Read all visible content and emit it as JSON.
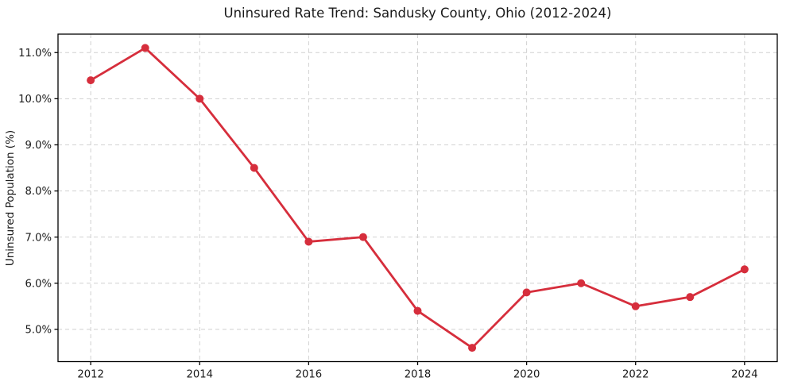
{
  "chart_data": {
    "type": "line",
    "title": "Uninsured Rate Trend: Sandusky County, Ohio (2012-2024)",
    "xlabel": "",
    "ylabel": "Uninsured Population (%)",
    "x": [
      2012,
      2013,
      2014,
      2015,
      2016,
      2017,
      2018,
      2019,
      2020,
      2021,
      2022,
      2023,
      2024
    ],
    "values": [
      10.4,
      11.1,
      10.0,
      8.5,
      6.9,
      7.0,
      5.4,
      4.6,
      5.8,
      6.0,
      5.5,
      5.7,
      6.3
    ],
    "xlim": [
      2011.4,
      2024.6
    ],
    "ylim": [
      4.3,
      11.4
    ],
    "xticks": [
      2012,
      2014,
      2016,
      2018,
      2020,
      2022,
      2024
    ],
    "xtick_labels": [
      "2012",
      "2014",
      "2016",
      "2018",
      "2020",
      "2022",
      "2024"
    ],
    "yticks": [
      5.0,
      6.0,
      7.0,
      8.0,
      9.0,
      10.0,
      11.0
    ],
    "ytick_labels": [
      "5.0%",
      "6.0%",
      "7.0%",
      "8.0%",
      "9.0%",
      "10.0%",
      "11.0%"
    ],
    "grid": true,
    "grid_style": "dashed",
    "legend_position": "none",
    "line_color": "#d62e3c",
    "grid_color": "#d0d0d0",
    "spine_color": "#000000",
    "background": "#ffffff",
    "marker": "circle"
  }
}
